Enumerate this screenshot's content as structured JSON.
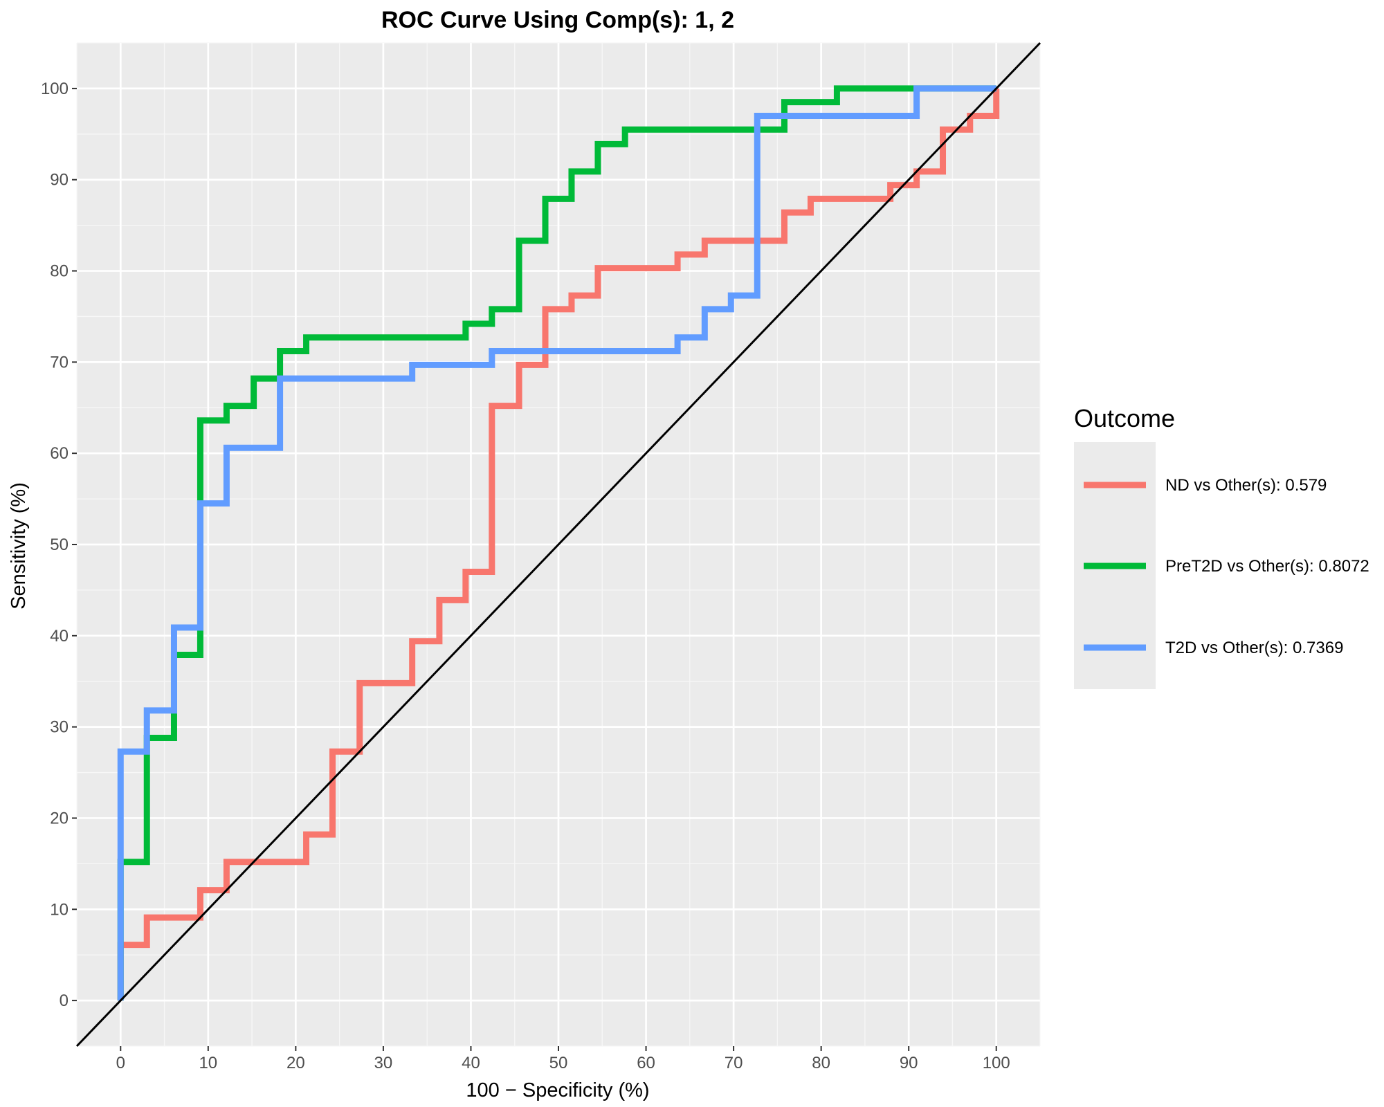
{
  "chart_data": {
    "type": "line",
    "title": "ROC Curve Using Comp(s): 1, 2",
    "xlabel": "100 − Specificity (%)",
    "ylabel": "Sensitivity (%)",
    "xlim": [
      -5,
      105
    ],
    "ylim": [
      -5,
      105
    ],
    "xticks": [
      "0",
      "10",
      "20",
      "30",
      "40",
      "50",
      "60",
      "70",
      "80",
      "90",
      "100"
    ],
    "yticks": [
      "0",
      "10",
      "20",
      "30",
      "40",
      "50",
      "60",
      "70",
      "80",
      "90",
      "100"
    ],
    "grid": true,
    "legend": {
      "title": "Outcome",
      "placement": "right"
    },
    "reference_line": {
      "from": [
        0,
        0
      ],
      "to": [
        100,
        100
      ],
      "color": "#000000"
    },
    "series": [
      {
        "name": "ND vs Other(s): 0.579",
        "color": "#F8766D",
        "points": [
          [
            0,
            0
          ],
          [
            0,
            6.1
          ],
          [
            3,
            6.1
          ],
          [
            3,
            9.1
          ],
          [
            9.1,
            9.1
          ],
          [
            9.1,
            12.1
          ],
          [
            12.1,
            12.1
          ],
          [
            12.1,
            15.2
          ],
          [
            21.2,
            15.2
          ],
          [
            21.2,
            18.2
          ],
          [
            24.2,
            18.2
          ],
          [
            24.2,
            27.3
          ],
          [
            27.3,
            27.3
          ],
          [
            27.3,
            34.8
          ],
          [
            33.3,
            34.8
          ],
          [
            33.3,
            39.4
          ],
          [
            36.4,
            39.4
          ],
          [
            36.4,
            43.9
          ],
          [
            39.4,
            43.9
          ],
          [
            39.4,
            47
          ],
          [
            42.4,
            47
          ],
          [
            42.4,
            65.2
          ],
          [
            45.5,
            65.2
          ],
          [
            45.5,
            69.7
          ],
          [
            48.5,
            69.7
          ],
          [
            48.5,
            75.8
          ],
          [
            51.5,
            75.8
          ],
          [
            51.5,
            77.3
          ],
          [
            54.5,
            77.3
          ],
          [
            54.5,
            80.3
          ],
          [
            63.6,
            80.3
          ],
          [
            63.6,
            81.8
          ],
          [
            66.7,
            81.8
          ],
          [
            66.7,
            83.3
          ],
          [
            75.8,
            83.3
          ],
          [
            75.8,
            86.4
          ],
          [
            78.8,
            86.4
          ],
          [
            78.8,
            87.9
          ],
          [
            87.9,
            87.9
          ],
          [
            87.9,
            89.4
          ],
          [
            90.9,
            89.4
          ],
          [
            90.9,
            90.9
          ],
          [
            93.9,
            90.9
          ],
          [
            93.9,
            95.5
          ],
          [
            97,
            95.5
          ],
          [
            97,
            97
          ],
          [
            100,
            97
          ],
          [
            100,
            100
          ]
        ]
      },
      {
        "name": "PreT2D vs Other(s): 0.8072",
        "color": "#00BA38",
        "points": [
          [
            0,
            0
          ],
          [
            0,
            15.2
          ],
          [
            3,
            15.2
          ],
          [
            3,
            28.8
          ],
          [
            6.1,
            28.8
          ],
          [
            6.1,
            37.9
          ],
          [
            9.1,
            37.9
          ],
          [
            9.1,
            63.6
          ],
          [
            12.1,
            63.6
          ],
          [
            12.1,
            65.2
          ],
          [
            15.2,
            65.2
          ],
          [
            15.2,
            68.2
          ],
          [
            18.2,
            68.2
          ],
          [
            18.2,
            71.2
          ],
          [
            21.2,
            71.2
          ],
          [
            21.2,
            72.7
          ],
          [
            39.4,
            72.7
          ],
          [
            39.4,
            74.2
          ],
          [
            42.4,
            74.2
          ],
          [
            42.4,
            75.8
          ],
          [
            45.5,
            75.8
          ],
          [
            45.5,
            83.3
          ],
          [
            48.5,
            83.3
          ],
          [
            48.5,
            87.9
          ],
          [
            51.5,
            87.9
          ],
          [
            51.5,
            90.9
          ],
          [
            54.5,
            90.9
          ],
          [
            54.5,
            93.9
          ],
          [
            57.6,
            93.9
          ],
          [
            57.6,
            95.5
          ],
          [
            75.8,
            95.5
          ],
          [
            75.8,
            98.5
          ],
          [
            81.8,
            98.5
          ],
          [
            81.8,
            100
          ],
          [
            100,
            100
          ]
        ]
      },
      {
        "name": "T2D vs Other(s): 0.7369",
        "color": "#619CFF",
        "points": [
          [
            0,
            0
          ],
          [
            0,
            27.3
          ],
          [
            3,
            27.3
          ],
          [
            3,
            31.8
          ],
          [
            6.1,
            31.8
          ],
          [
            6.1,
            40.9
          ],
          [
            9.1,
            40.9
          ],
          [
            9.1,
            54.5
          ],
          [
            12.1,
            54.5
          ],
          [
            12.1,
            60.6
          ],
          [
            18.2,
            60.6
          ],
          [
            18.2,
            68.2
          ],
          [
            33.3,
            68.2
          ],
          [
            33.3,
            69.7
          ],
          [
            42.4,
            69.7
          ],
          [
            42.4,
            71.2
          ],
          [
            63.6,
            71.2
          ],
          [
            63.6,
            72.7
          ],
          [
            66.7,
            72.7
          ],
          [
            66.7,
            75.8
          ],
          [
            69.7,
            75.8
          ],
          [
            69.7,
            77.3
          ],
          [
            72.7,
            77.3
          ],
          [
            72.7,
            97
          ],
          [
            90.9,
            97
          ],
          [
            90.9,
            100
          ],
          [
            100,
            100
          ]
        ]
      }
    ]
  }
}
